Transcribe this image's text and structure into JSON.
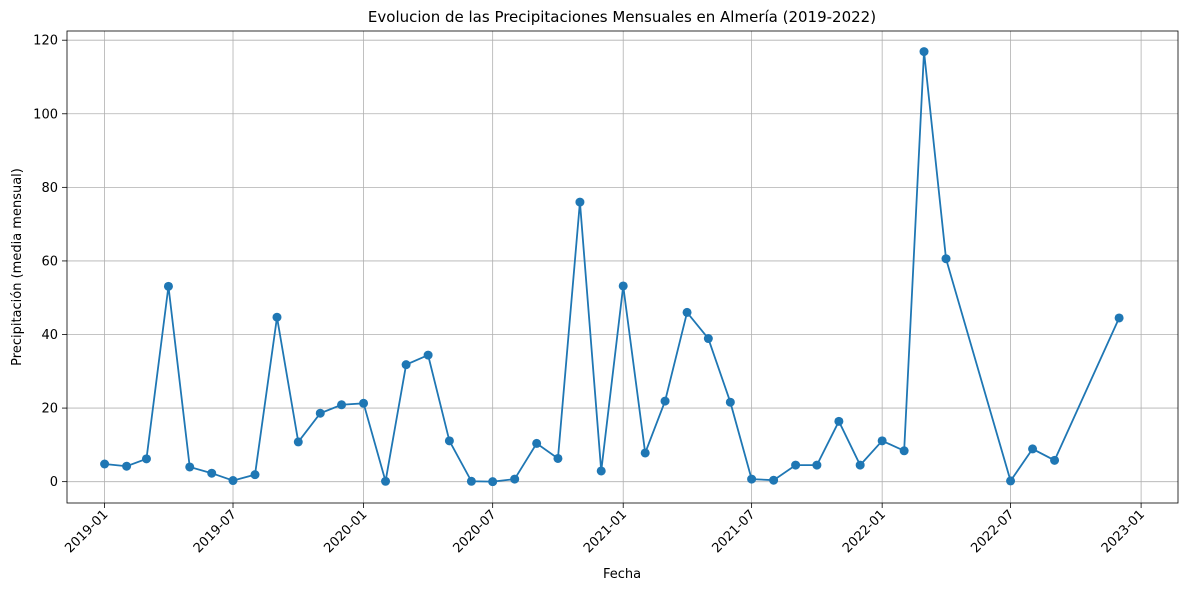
{
  "chart_data": {
    "type": "line",
    "title": "Evolucion de las Precipitaciones Mensuales en Almería (2019-2022)",
    "xlabel": "Fecha",
    "ylabel": "Precipitación (media mensual)",
    "x_ticks": [
      "2019-01",
      "2019-07",
      "2020-01",
      "2020-07",
      "2021-01",
      "2021-07",
      "2022-01",
      "2022-07",
      "2023-01"
    ],
    "y_ticks": [
      0,
      20,
      40,
      60,
      80,
      100,
      120
    ],
    "xlim": [
      "2018-11-09",
      "2023-02-22"
    ],
    "ylim": [
      -5.8,
      122.5
    ],
    "grid": true,
    "marker": "circle",
    "color": "#1f77b4",
    "series": [
      {
        "x": [
          "2019-01-01",
          "2019-02-01",
          "2019-03-01",
          "2019-04-01",
          "2019-05-01",
          "2019-06-01",
          "2019-07-01",
          "2019-08-01",
          "2019-09-01",
          "2019-10-01",
          "2019-11-01",
          "2019-12-01",
          "2020-01-01",
          "2020-02-01",
          "2020-03-01",
          "2020-04-01",
          "2020-05-01",
          "2020-06-01",
          "2020-07-01",
          "2020-08-01",
          "2020-09-01",
          "2020-10-01",
          "2020-11-01",
          "2020-12-01",
          "2021-01-01",
          "2021-02-01",
          "2021-03-01",
          "2021-04-01",
          "2021-05-01",
          "2021-06-01",
          "2021-07-01",
          "2021-08-01",
          "2021-09-01",
          "2021-10-01",
          "2021-11-01",
          "2021-12-01",
          "2022-01-01",
          "2022-02-01",
          "2022-03-01",
          "2022-04-01",
          "2022-07-01",
          "2022-08-01",
          "2022-09-01",
          "2022-12-01"
        ],
        "y": [
          4.8,
          4.2,
          6.2,
          53.1,
          4.0,
          2.3,
          0.3,
          1.9,
          44.7,
          10.8,
          18.6,
          20.9,
          21.3,
          0.1,
          31.8,
          34.4,
          11.1,
          0.1,
          0.0,
          0.7,
          10.4,
          6.3,
          76.0,
          2.9,
          53.2,
          7.8,
          21.9,
          46.0,
          38.9,
          21.6,
          0.7,
          0.4,
          4.5,
          4.5,
          16.4,
          4.5,
          11.1,
          8.4,
          116.9,
          60.6,
          0.2,
          8.9,
          5.8,
          44.5
        ]
      }
    ]
  }
}
